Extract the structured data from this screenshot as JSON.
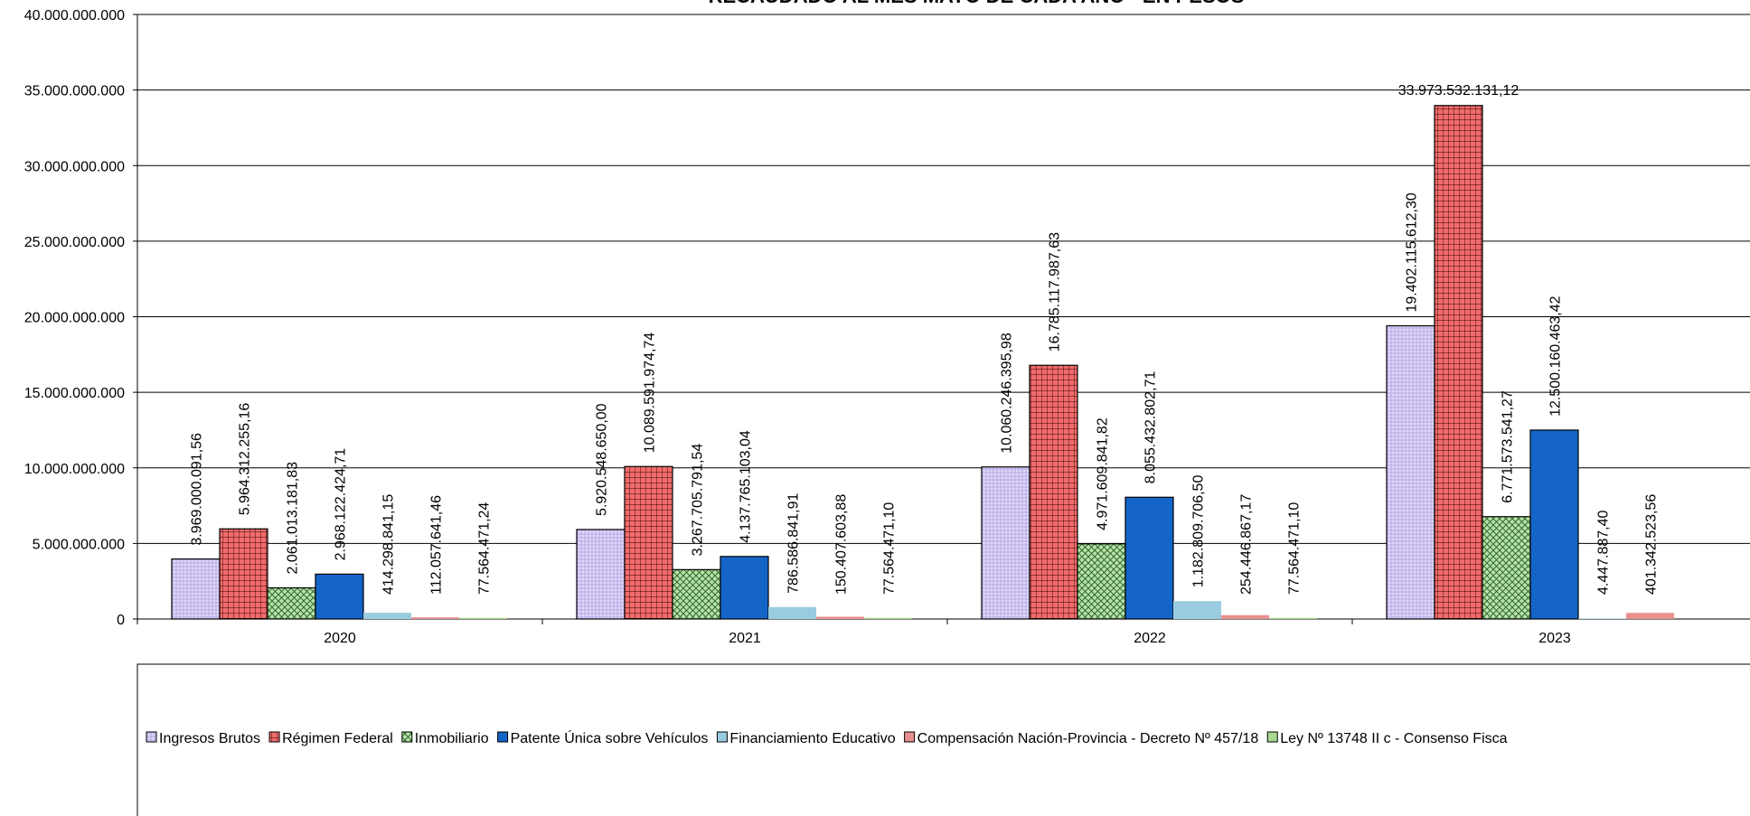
{
  "chart_data": {
    "type": "bar",
    "title": "RECAUDADO AL MES MAYO DE CADA AÑO - EN PESOS",
    "xlabel": "",
    "ylabel": "",
    "ylim": [
      0,
      40000000000
    ],
    "yticks": [
      0,
      5000000000,
      10000000000,
      15000000000,
      20000000000,
      25000000000,
      30000000000,
      35000000000,
      40000000000
    ],
    "ytick_labels": [
      "0",
      "5.000.000.000",
      "10.000.000.000",
      "15.000.000.000",
      "20.000.000.000",
      "25.000.000.000",
      "30.000.000.000",
      "35.000.000.000",
      "40.000.000.000"
    ],
    "grid": true,
    "legend_position": "bottom",
    "categories": [
      "2020",
      "2021",
      "2022",
      "2023"
    ],
    "series": [
      {
        "name": "Ingresos Brutos",
        "color": "#ccc0f0",
        "pattern": "dots",
        "values": [
          3969000091.56,
          5920548650.0,
          10060246395.98,
          19402115612.3
        ],
        "labels": [
          "3.969.000.091,56",
          "5.920.548.650,00",
          "10.060.246.395,98",
          "19.402.115.612,30"
        ]
      },
      {
        "name": "Régimen Federal",
        "color": "#f06c6c",
        "pattern": "grid",
        "values": [
          5964312255.16,
          10089591974.74,
          16785117987.63,
          33973532131.12
        ],
        "labels": [
          "5.964.312.255,16",
          "10.089.591.974,74",
          "16.785.117.987,63",
          "33.973.532.131,12"
        ]
      },
      {
        "name": "Inmobiliario",
        "color": "#b8e0a8",
        "pattern": "diag",
        "values": [
          2061013181.83,
          3267705791.54,
          4971609841.82,
          6771573541.27
        ],
        "labels": [
          "2.061.013.181,83",
          "3.267.705.791,54",
          "4.971.609.841,82",
          "6.771.573.541,27"
        ]
      },
      {
        "name": "Patente Única sobre Vehículos",
        "color": "#1565c8",
        "pattern": "solid",
        "values": [
          2968122424.71,
          4137765103.04,
          8055432802.71,
          12500160463.42
        ],
        "labels": [
          "2.968.122.424,71",
          "4.137.765.103,04",
          "8.055.432.802,71",
          "12.500.160.463,42"
        ]
      },
      {
        "name": "Financiamiento Educativo",
        "color": "#99cce0",
        "pattern": "solid",
        "values": [
          414298841.15,
          786586841.91,
          1182809706.5,
          4447887.4
        ],
        "labels": [
          "414.298.841,15",
          "786.586.841,91",
          "1.182.809.706,50",
          "4.447.887,40"
        ]
      },
      {
        "name": "Compensación Nación-Provincia - Decreto Nº 457/18",
        "color": "#e89090",
        "pattern": "solid",
        "values": [
          112057641.46,
          150407603.88,
          254446867.17,
          401342523.56
        ],
        "labels": [
          "112.057.641,46",
          "150.407.603,88",
          "254.446.867,17",
          "401.342.523,56"
        ]
      },
      {
        "name": "Ley Nº 13748 II c - Consenso Fisca",
        "color": "#a8d890",
        "pattern": "solid",
        "values": [
          77564471.24,
          77564471.1,
          77564471.1,
          null
        ],
        "labels": [
          "77.564.471,24",
          "77.564.471,10",
          "77.564.471,10",
          ""
        ]
      }
    ]
  }
}
